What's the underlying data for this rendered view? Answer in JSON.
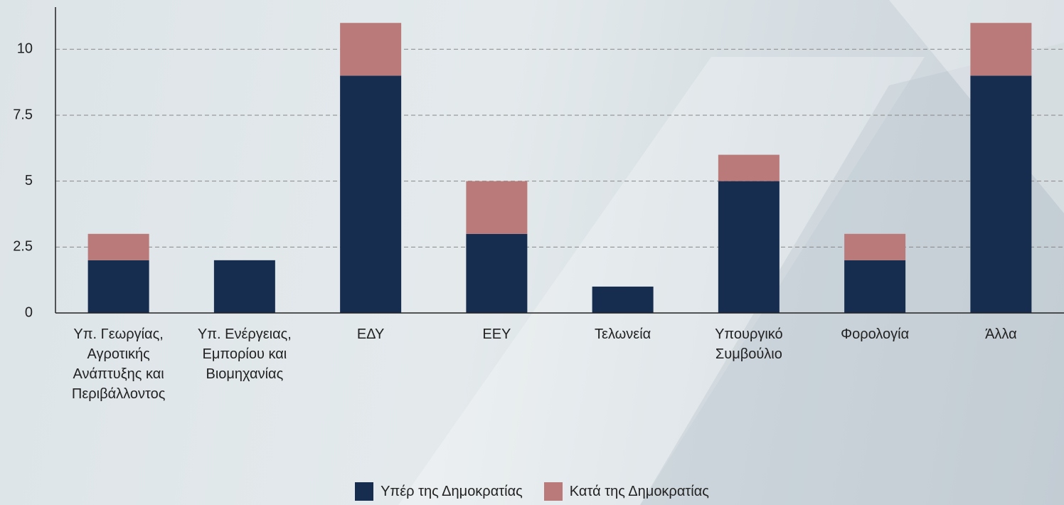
{
  "chart_data": {
    "type": "stacked_bar",
    "categories": [
      "Υπ. Γεωργίας, Αγροτικής Ανάπτυξης και Περιβάλλοντος",
      "Υπ. Ενέργειας, Εμπορίου και Βιομηχανίας",
      "ΕΔΥ",
      "ΕΕΥ",
      "Τελωνεία",
      "Υπουργικό Συμβούλιο",
      "Φορολογία",
      "Άλλα"
    ],
    "series": [
      {
        "name": "Υπέρ της Δημοκρατίας",
        "color": "#172d50",
        "values": [
          2,
          2,
          9,
          3,
          1,
          5,
          2,
          9
        ]
      },
      {
        "name": "Κατά της Δημοκρατίας",
        "color": "#bb7a7a",
        "values": [
          1,
          0,
          2,
          2,
          0,
          1,
          1,
          2
        ]
      }
    ],
    "ylim": [
      0,
      11.6
    ],
    "yticks": [
      0,
      2.5,
      5,
      7.5,
      10
    ],
    "grid": true,
    "legend": "bottom"
  }
}
